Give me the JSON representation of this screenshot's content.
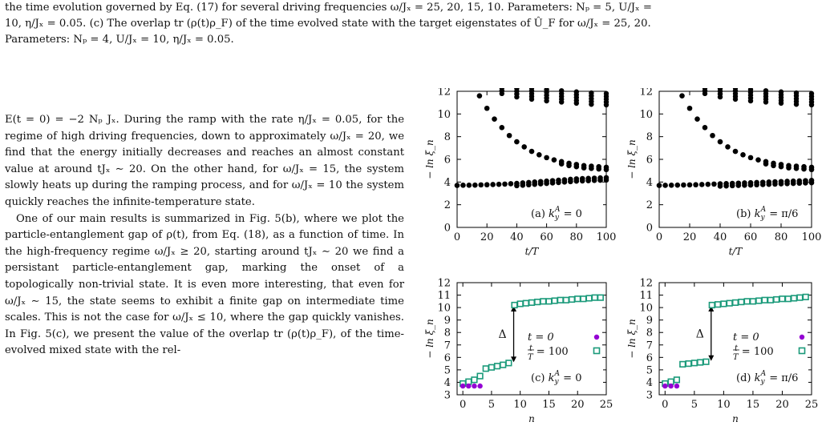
{
  "caption": {
    "line1": "the time evolution governed by Eq. (17) for several driving frequencies ω/Jₓ = 25, 20, 15, 10. Parameters: Nₚ = 5, U/Jₓ =",
    "line2": "10, η/Jₓ = 0.05. (c) The overlap tr (ρ(t)ρ_F) of the time evolved state with the target eigenstates of Û_F for ω/Jₓ = 25, 20.",
    "line3": "Parameters: Nₚ = 4, U/Jₓ = 10, η/Jₓ = 0.05."
  },
  "body": {
    "para1": "E(t = 0) = −2 Nₚ Jₓ. During the ramp with the rate η/Jₓ = 0.05, for the regime of high driving frequencies, down to approximately ω/Jₓ = 20, we find that the energy initially decreases and reaches an almost constant value at around tJₓ ∼ 20. On the other hand, for ω/Jₓ = 15, the system slowly heats up during the ramping process, and for ω/Jₓ = 10 the system quickly reaches the infinite-temperature state.",
    "para2": "One of our main results is summarized in Fig. 5(b), where we plot the particle-entanglement gap of ρ(t), from Eq. (18), as a function of time. In the high-frequency regime ω/Jₓ ≥ 20, starting around tJₓ ∼ 20 we find a persistant particle-entanglement gap, marking the onset of a topologically non-trivial state. It is even more interesting, that even for ω/Jₓ ∼ 15, the state seems to exhibit a finite gap on intermediate time scales. This is not the case for ω/Jₓ ≤ 10, where the gap quickly vanishes. In Fig. 5(c), we present the value of the overlap tr (ρ(t)ρ_F), of the time-evolved mixed state with the rel-"
  },
  "chart_data": [
    {
      "type": "scatter",
      "panel": "a",
      "annotation": "(a) k_y^A = 0",
      "xlabel": "t/T",
      "ylabel": "− ln ξ_n",
      "xlim": [
        0,
        100
      ],
      "ylim": [
        0,
        12
      ],
      "xticks": [
        "0",
        "20",
        "40",
        "60",
        "80",
        "100"
      ],
      "yticks": [
        "0",
        "2",
        "4",
        "6",
        "8",
        "10",
        "12"
      ],
      "series": [
        {
          "values": [
            [
              0,
              3.7
            ],
            [
              4,
              3.72
            ],
            [
              8,
              3.72
            ],
            [
              12,
              3.73
            ],
            [
              16,
              3.75
            ],
            [
              20,
              3.76
            ],
            [
              24,
              3.78
            ],
            [
              28,
              3.8
            ],
            [
              32,
              3.82
            ],
            [
              36,
              3.85
            ],
            [
              40,
              3.88
            ],
            [
              44,
              3.92
            ],
            [
              48,
              3.96
            ],
            [
              52,
              4.0
            ],
            [
              56,
              4.04
            ],
            [
              60,
              4.08
            ],
            [
              64,
              4.12
            ],
            [
              68,
              4.16
            ],
            [
              72,
              4.2
            ],
            [
              76,
              4.24
            ],
            [
              80,
              4.28
            ],
            [
              84,
              4.3
            ],
            [
              88,
              4.32
            ],
            [
              92,
              4.34
            ],
            [
              96,
              4.36
            ],
            [
              100,
              4.38
            ]
          ]
        },
        {
          "values": [
            [
              15,
              11.6
            ],
            [
              20,
              10.5
            ],
            [
              25,
              9.55
            ],
            [
              30,
              8.8
            ],
            [
              35,
              8.1
            ],
            [
              40,
              7.55
            ],
            [
              45,
              7.1
            ],
            [
              50,
              6.7
            ],
            [
              55,
              6.4
            ],
            [
              60,
              6.15
            ],
            [
              65,
              5.95
            ],
            [
              70,
              5.8
            ],
            [
              75,
              5.65
            ],
            [
              80,
              5.55
            ],
            [
              85,
              5.45
            ],
            [
              90,
              5.4
            ],
            [
              95,
              5.35
            ],
            [
              100,
              5.3
            ]
          ]
        },
        {
          "values": [
            [
              30,
              11.8
            ],
            [
              40,
              11.5
            ],
            [
              50,
              11.3
            ],
            [
              60,
              11.15
            ],
            [
              70,
              11.05
            ],
            [
              80,
              10.95
            ],
            [
              90,
              10.85
            ],
            [
              100,
              10.8
            ]
          ]
        }
      ]
    },
    {
      "type": "scatter",
      "panel": "b",
      "annotation": "(b) k_y^A = π/6",
      "xlabel": "t/T",
      "ylabel": "− ln ξ_n",
      "xlim": [
        0,
        100
      ],
      "ylim": [
        0,
        12
      ],
      "xticks": [
        "0",
        "20",
        "40",
        "60",
        "80",
        "100"
      ],
      "yticks": [
        "0",
        "2",
        "4",
        "6",
        "8",
        "10",
        "12"
      ],
      "series": [
        {
          "values": [
            [
              0,
              3.7
            ],
            [
              4,
              3.71
            ],
            [
              8,
              3.72
            ],
            [
              12,
              3.73
            ],
            [
              16,
              3.74
            ],
            [
              20,
              3.75
            ],
            [
              24,
              3.76
            ],
            [
              28,
              3.78
            ],
            [
              32,
              3.8
            ],
            [
              36,
              3.82
            ],
            [
              40,
              3.84
            ],
            [
              44,
              3.86
            ],
            [
              48,
              3.88
            ],
            [
              52,
              3.9
            ],
            [
              56,
              3.92
            ],
            [
              60,
              3.94
            ],
            [
              64,
              3.96
            ],
            [
              68,
              3.98
            ],
            [
              72,
              4.0
            ],
            [
              76,
              4.02
            ],
            [
              80,
              4.04
            ],
            [
              84,
              4.06
            ],
            [
              88,
              4.08
            ],
            [
              92,
              4.1
            ],
            [
              96,
              4.12
            ],
            [
              100,
              4.14
            ]
          ]
        },
        {
          "values": [
            [
              15,
              11.6
            ],
            [
              20,
              10.5
            ],
            [
              25,
              9.55
            ],
            [
              30,
              8.8
            ],
            [
              35,
              8.1
            ],
            [
              40,
              7.55
            ],
            [
              45,
              7.1
            ],
            [
              50,
              6.7
            ],
            [
              55,
              6.4
            ],
            [
              60,
              6.15
            ],
            [
              65,
              5.95
            ],
            [
              70,
              5.8
            ],
            [
              75,
              5.65
            ],
            [
              80,
              5.55
            ],
            [
              85,
              5.45
            ],
            [
              90,
              5.4
            ],
            [
              95,
              5.35
            ],
            [
              100,
              5.3
            ]
          ]
        },
        {
          "values": [
            [
              30,
              11.8
            ],
            [
              40,
              11.5
            ],
            [
              50,
              11.3
            ],
            [
              60,
              11.15
            ],
            [
              70,
              11.05
            ],
            [
              80,
              10.95
            ],
            [
              90,
              10.85
            ],
            [
              100,
              10.8
            ]
          ]
        }
      ]
    },
    {
      "type": "scatter",
      "panel": "c",
      "annotation": "(c) k_y^A = 0",
      "gap_label": "Δ",
      "legend": [
        {
          "label": "t = 0",
          "color": "#9400d3",
          "marker": "circle"
        },
        {
          "label": "t/T = 100",
          "color": "#1a9a7a",
          "marker": "square"
        }
      ],
      "xlabel": "n",
      "ylabel": "− ln ξ_n",
      "xlim": [
        -1,
        25
      ],
      "ylim": [
        3,
        12
      ],
      "xticks": [
        "0",
        "5",
        "10",
        "15",
        "20",
        "25"
      ],
      "yticks": [
        "3",
        "4",
        "5",
        "6",
        "7",
        "8",
        "9",
        "10",
        "11",
        "12"
      ],
      "series": [
        {
          "name": "t = 0",
          "values": [
            [
              0,
              3.7
            ],
            [
              1,
              3.7
            ],
            [
              2,
              3.7
            ],
            [
              3,
              3.7
            ]
          ]
        },
        {
          "name": "t/T = 100",
          "values": [
            [
              0,
              3.9
            ],
            [
              1,
              4.05
            ],
            [
              2,
              4.2
            ],
            [
              3,
              4.5
            ],
            [
              4,
              5.1
            ],
            [
              5,
              5.2
            ],
            [
              6,
              5.3
            ],
            [
              7,
              5.4
            ],
            [
              8,
              5.55
            ],
            [
              9,
              10.2
            ],
            [
              10,
              10.3
            ],
            [
              11,
              10.35
            ],
            [
              12,
              10.4
            ],
            [
              13,
              10.45
            ],
            [
              14,
              10.5
            ],
            [
              15,
              10.5
            ],
            [
              16,
              10.55
            ],
            [
              17,
              10.6
            ],
            [
              18,
              10.6
            ],
            [
              19,
              10.65
            ],
            [
              20,
              10.7
            ],
            [
              21,
              10.7
            ],
            [
              22,
              10.75
            ],
            [
              23,
              10.8
            ],
            [
              24,
              10.8
            ]
          ]
        }
      ]
    },
    {
      "type": "scatter",
      "panel": "d",
      "annotation": "(d) k_y^A = π/6",
      "gap_label": "Δ",
      "legend": [
        {
          "label": "t = 0",
          "color": "#9400d3",
          "marker": "circle"
        },
        {
          "label": "t/T = 100",
          "color": "#1a9a7a",
          "marker": "square"
        }
      ],
      "xlabel": "n",
      "ylabel": "− ln ξ_n",
      "xlim": [
        -1,
        25
      ],
      "ylim": [
        3,
        12
      ],
      "xticks": [
        "0",
        "5",
        "10",
        "15",
        "20",
        "25"
      ],
      "yticks": [
        "3",
        "4",
        "5",
        "6",
        "7",
        "8",
        "9",
        "10",
        "11",
        "12"
      ],
      "series": [
        {
          "name": "t = 0",
          "values": [
            [
              0,
              3.7
            ],
            [
              1,
              3.7
            ],
            [
              2,
              3.7
            ]
          ]
        },
        {
          "name": "t/T = 100",
          "values": [
            [
              0,
              3.9
            ],
            [
              1,
              4.05
            ],
            [
              2,
              4.2
            ],
            [
              3,
              5.45
            ],
            [
              4,
              5.5
            ],
            [
              5,
              5.55
            ],
            [
              6,
              5.6
            ],
            [
              7,
              5.65
            ],
            [
              8,
              10.2
            ],
            [
              9,
              10.25
            ],
            [
              10,
              10.3
            ],
            [
              11,
              10.35
            ],
            [
              12,
              10.4
            ],
            [
              13,
              10.45
            ],
            [
              14,
              10.5
            ],
            [
              15,
              10.5
            ],
            [
              16,
              10.55
            ],
            [
              17,
              10.6
            ],
            [
              18,
              10.6
            ],
            [
              19,
              10.65
            ],
            [
              20,
              10.7
            ],
            [
              21,
              10.7
            ],
            [
              22,
              10.75
            ],
            [
              23,
              10.8
            ],
            [
              24,
              10.85
            ]
          ]
        }
      ]
    }
  ]
}
